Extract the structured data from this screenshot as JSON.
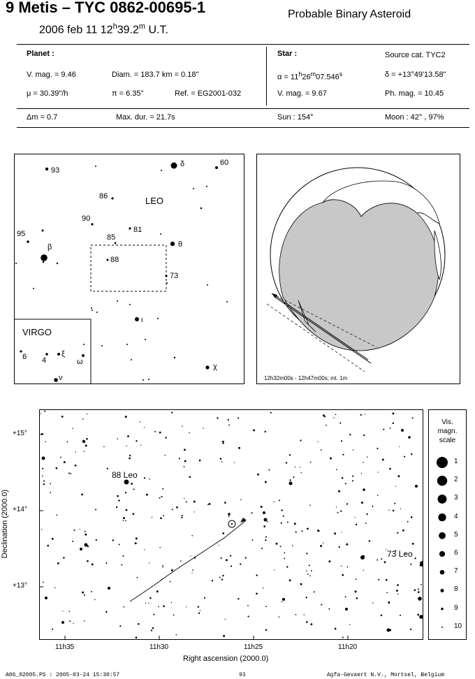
{
  "header": {
    "title": "9 Metis  –  TYC 0862-00695-1",
    "subtitle": "Probable Binary Asteroid",
    "date_prefix": "2006 feb 11  12",
    "date_h": "h",
    "date_mid": "39.2",
    "date_m": "m",
    "date_suffix": " U.T."
  },
  "info": {
    "planet_label": "Planet :",
    "vmag": "V. mag. =  9.46",
    "diam": "Diam. = 183.7 km = 0.18\"",
    "mu": "μ = 30.39\"/h",
    "pi": "π =  6.35\"",
    "ref": "Ref. = EG2001-032",
    "star_label": "Star :",
    "source": "Source cat.  TYC2",
    "alpha_prefix": "α = 11",
    "alpha_h": "h",
    "alpha_mid": "26",
    "alpha_m": "m",
    "alpha_sec": "07.546",
    "alpha_s": "s",
    "delta": "δ = +13°49'13.58\"",
    "star_vmag": "V. mag. =  9.67",
    "phmag": "Ph. mag. = 10.45",
    "dm": "Δm = 0.7",
    "maxdur": "Max. dur. = 21.7s",
    "sun": "Sun : 154°",
    "moon": "Moon :  42° , 97%"
  },
  "finder": {
    "constellation": "LEO",
    "inset_constellation": "VIRGO",
    "labels": [
      "93",
      "δ",
      "60",
      "86",
      "90",
      "81",
      "95",
      "85",
      "θ",
      "β",
      "88",
      "73",
      "ι",
      "6",
      "4",
      "ξ",
      "ω",
      "ν",
      "χ"
    ]
  },
  "globe": {
    "caption": "12h32m00s - 12h47m00s; int.  1m"
  },
  "chart": {
    "ylabel": "Declination (2000.0)",
    "xlabel": "Right ascension (2000.0)",
    "xticks": [
      "11h35",
      "11h30",
      "11h25",
      "11h20"
    ],
    "yticks": [
      "+15°",
      "+14°",
      "+13°"
    ],
    "star_labels": [
      "88 Leo",
      "73 Leo"
    ]
  },
  "scale": {
    "title_l1": "Vis.",
    "title_l2": "magn.",
    "title_l3": "scale",
    "magnitudes": [
      "1",
      "2",
      "3",
      "4",
      "5",
      "6",
      "7",
      "8",
      "9",
      "10"
    ]
  },
  "footer": {
    "file": "A06_02005.PS : 2005-03-24 15:30:57",
    "page": "93",
    "company": "Agfa-Gevaert N.V., Mortsel, Belgium"
  }
}
